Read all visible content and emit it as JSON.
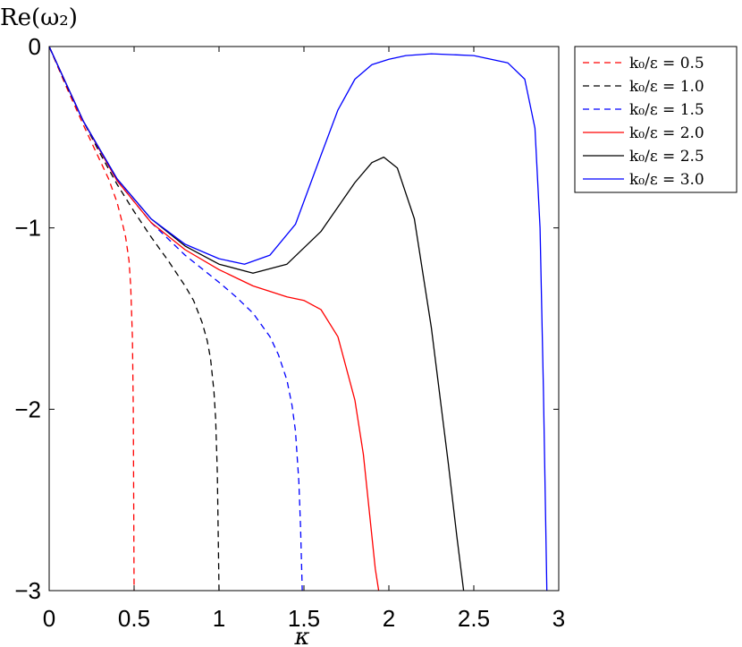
{
  "chart_data": {
    "type": "line",
    "title": "",
    "xlabel": "κ",
    "ylabel": "Re(ω₂)",
    "xlim": [
      0,
      3
    ],
    "ylim": [
      -3,
      0
    ],
    "xticks": [
      0,
      0.5,
      1,
      1.5,
      2,
      2.5,
      3
    ],
    "xtick_labels": [
      "0",
      "0.5",
      "1",
      "1.5",
      "2",
      "2.5",
      "3"
    ],
    "yticks": [
      0,
      -1,
      -2,
      -3
    ],
    "ytick_labels": [
      "0",
      "−1",
      "−2",
      "−3"
    ],
    "grid": false,
    "legend_position": "outside-right-top",
    "series": [
      {
        "name": "k₀/ε = 0.5",
        "color": "#ff0000",
        "dash": "dashed",
        "x": [
          0,
          0.1,
          0.2,
          0.3,
          0.35,
          0.4,
          0.43,
          0.45,
          0.47,
          0.48,
          0.49,
          0.495,
          0.5
        ],
        "y": [
          0,
          -0.22,
          -0.43,
          -0.63,
          -0.73,
          -0.86,
          -0.97,
          -1.05,
          -1.18,
          -1.32,
          -1.6,
          -2.0,
          -3.0
        ]
      },
      {
        "name": "k₀/ε = 1.0",
        "color": "#000000",
        "dash": "dashed",
        "x": [
          0,
          0.1,
          0.2,
          0.3,
          0.4,
          0.5,
          0.6,
          0.7,
          0.8,
          0.85,
          0.9,
          0.93,
          0.95,
          0.97,
          0.98,
          0.99,
          1.0
        ],
        "y": [
          0,
          -0.21,
          -0.41,
          -0.59,
          -0.76,
          -0.91,
          -1.05,
          -1.18,
          -1.32,
          -1.4,
          -1.52,
          -1.62,
          -1.72,
          -1.9,
          -2.05,
          -2.35,
          -3.0
        ]
      },
      {
        "name": "k₀/ε = 1.5",
        "color": "#0000ff",
        "dash": "dashed",
        "x": [
          0,
          0.2,
          0.4,
          0.6,
          0.8,
          1.0,
          1.1,
          1.2,
          1.3,
          1.35,
          1.4,
          1.43,
          1.45,
          1.47,
          1.48,
          1.49
        ],
        "y": [
          0,
          -0.41,
          -0.74,
          -0.97,
          -1.15,
          -1.3,
          -1.38,
          -1.47,
          -1.6,
          -1.7,
          -1.84,
          -1.98,
          -2.12,
          -2.4,
          -2.65,
          -3.0
        ]
      },
      {
        "name": "k₀/ε = 2.0",
        "color": "#ff0000",
        "dash": "solid",
        "x": [
          0,
          0.2,
          0.4,
          0.6,
          0.8,
          1.0,
          1.2,
          1.4,
          1.5,
          1.6,
          1.7,
          1.8,
          1.85,
          1.9,
          1.92,
          1.94
        ],
        "y": [
          0,
          -0.41,
          -0.74,
          -0.97,
          -1.12,
          -1.23,
          -1.32,
          -1.38,
          -1.4,
          -1.45,
          -1.6,
          -1.95,
          -2.25,
          -2.7,
          -2.88,
          -3.0
        ]
      },
      {
        "name": "k₀/ε = 2.5",
        "color": "#000000",
        "dash": "solid",
        "x": [
          0,
          0.2,
          0.4,
          0.6,
          0.8,
          1.0,
          1.2,
          1.4,
          1.6,
          1.8,
          1.9,
          1.97,
          2.05,
          2.15,
          2.25,
          2.35,
          2.4,
          2.44
        ],
        "y": [
          0,
          -0.41,
          -0.73,
          -0.95,
          -1.1,
          -1.2,
          -1.25,
          -1.2,
          -1.02,
          -0.75,
          -0.64,
          -0.61,
          -0.67,
          -0.95,
          -1.55,
          -2.3,
          -2.7,
          -3.0
        ]
      },
      {
        "name": "k₀/ε = 3.0",
        "color": "#0000ff",
        "dash": "solid",
        "x": [
          0,
          0.2,
          0.4,
          0.6,
          0.8,
          1.0,
          1.15,
          1.3,
          1.45,
          1.6,
          1.7,
          1.8,
          1.9,
          2.0,
          2.1,
          2.25,
          2.5,
          2.7,
          2.8,
          2.86,
          2.89,
          2.91,
          2.93
        ],
        "y": [
          0,
          -0.41,
          -0.73,
          -0.95,
          -1.09,
          -1.17,
          -1.2,
          -1.15,
          -0.98,
          -0.6,
          -0.35,
          -0.18,
          -0.1,
          -0.07,
          -0.05,
          -0.04,
          -0.05,
          -0.09,
          -0.18,
          -0.45,
          -1.0,
          -1.9,
          -3.0
        ]
      }
    ]
  }
}
